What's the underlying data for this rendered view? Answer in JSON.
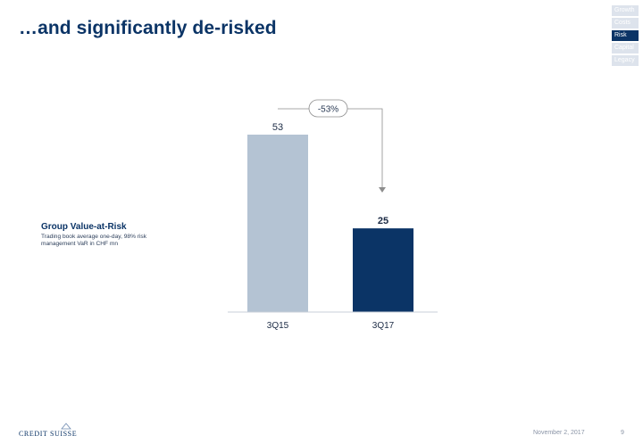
{
  "slide": {
    "title": "…and significantly de-risked",
    "nav_items": [
      "Growth",
      "Costs",
      "Risk",
      "Capital",
      "Legacy"
    ],
    "nav_active": "Risk"
  },
  "metric": {
    "title": "Group Value-at-Risk",
    "subtitle": "Trading book average one-day, 98% risk management VaR in CHF mn"
  },
  "chart_data": {
    "type": "bar",
    "categories": [
      "3Q15",
      "3Q17"
    ],
    "values": [
      53,
      25
    ],
    "data_labels": [
      "53",
      "25"
    ],
    "bar_colors": [
      "#b4c3d3",
      "#0b3466"
    ],
    "change_annotation": "-53%",
    "title": "",
    "xlabel": "",
    "ylabel": "",
    "ylim": [
      0,
      53
    ],
    "grid": false,
    "legend": "none"
  },
  "footer": {
    "logo": "CREDIT SUISSE",
    "date": "November 2, 2017",
    "page": "9"
  },
  "colors": {
    "navy": "#0b3466",
    "light_blue": "#b4c3d3",
    "nav_inactive": "#dde3ec"
  }
}
